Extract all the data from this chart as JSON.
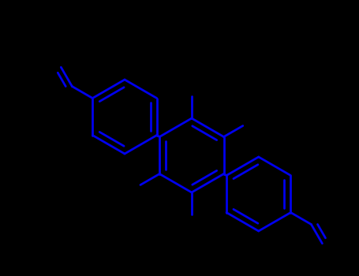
{
  "background_color": "#000000",
  "line_color": "#0000EE",
  "line_width": 2.0,
  "figsize": [
    4.55,
    3.5
  ],
  "dpi": 100,
  "xlim": [
    0,
    455
  ],
  "ylim": [
    0,
    350
  ]
}
